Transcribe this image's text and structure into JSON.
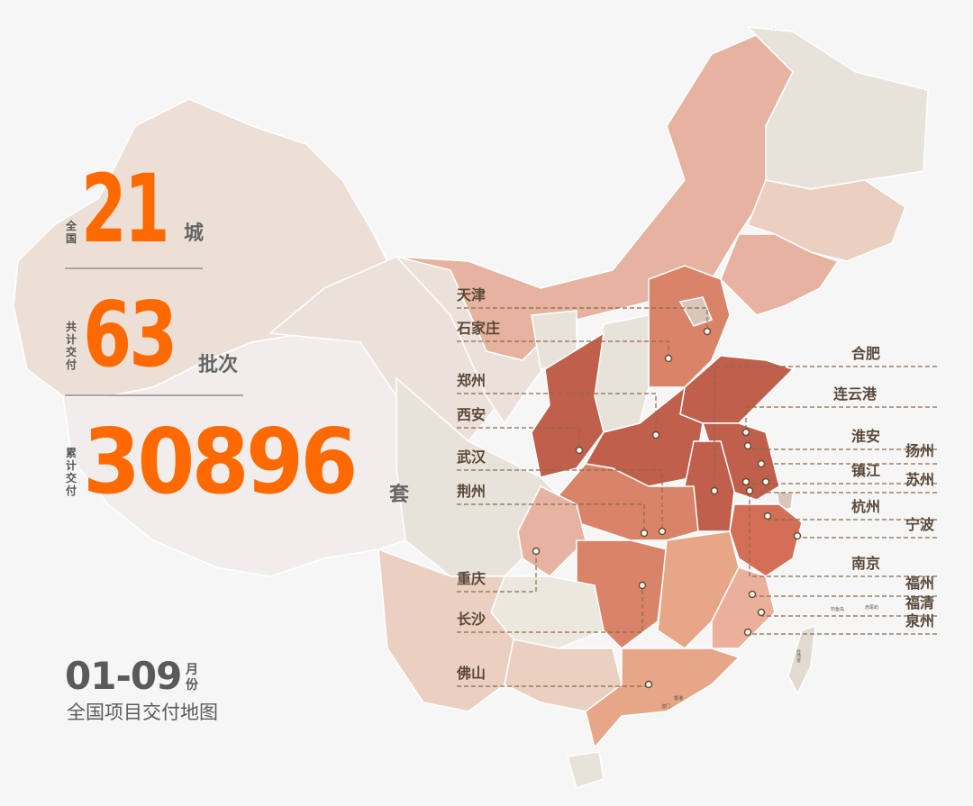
{
  "stats": [
    {
      "label": "全国",
      "value": "21",
      "unit": "城"
    },
    {
      "label": "共计交付",
      "value": "63",
      "unit": "批次"
    },
    {
      "label": "累计交付",
      "value": "30896",
      "unit": "套"
    }
  ],
  "period": {
    "value": "01-09",
    "unit": "月份",
    "caption": "全国项目交付地图"
  },
  "colors": {
    "accent": "#ff6a00",
    "leader": "#8b6a4a",
    "dark": "#c0604c",
    "mid": "#d98468",
    "light": "#e6b3a0",
    "pale": "#ece0d6",
    "grey": "#e8e3da"
  },
  "cities_left": [
    "天津",
    "石家庄",
    "郑州",
    "西安",
    "武汉",
    "荆州",
    "重庆",
    "长沙",
    "佛山"
  ],
  "cities_right": [
    "合肥",
    "连云港",
    "淮安",
    "扬州",
    "镇江",
    "苏州",
    "杭州",
    "宁波",
    "南京",
    "福州",
    "福清",
    "泉州"
  ],
  "map_small_labels": [
    "钓鱼岛",
    "赤尾屿",
    "台湾省",
    "香港",
    "澳门"
  ]
}
